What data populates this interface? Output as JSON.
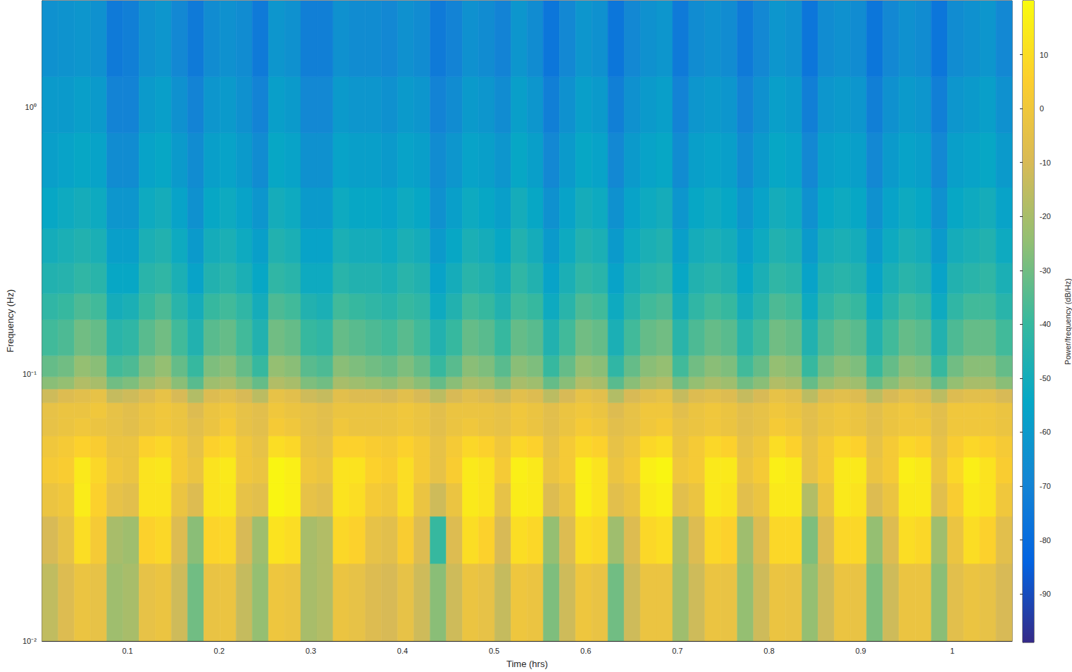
{
  "chart_data": {
    "type": "heatmap",
    "xlabel": "Time (hrs)",
    "ylabel": "Frequency (Hz)",
    "xlim": [
      0.0068,
      1.0652
    ],
    "xticks": [
      0.1,
      0.2,
      0.3,
      0.4,
      0.5,
      0.6,
      0.7,
      0.8,
      0.9,
      1
    ],
    "ylim": [
      0.01,
      2.5
    ],
    "yticks": [
      {
        "value": 0.01,
        "label": "10⁻²"
      },
      {
        "value": 0.1,
        "label": "10⁻¹"
      },
      {
        "value": 1,
        "label": "10⁰"
      }
    ],
    "log": "y",
    "grid": false,
    "time_edges": [
      0.0068,
      0.0244,
      0.0421,
      0.0597,
      0.0774,
      0.095,
      0.1126,
      0.1303,
      0.1479,
      0.1656,
      0.1832,
      0.2008,
      0.2185,
      0.2361,
      0.2538,
      0.2714,
      0.289,
      0.3067,
      0.3243,
      0.342,
      0.3596,
      0.3772,
      0.3949,
      0.4125,
      0.4302,
      0.4478,
      0.4654,
      0.4831,
      0.5007,
      0.5184,
      0.536,
      0.5536,
      0.5713,
      0.5889,
      0.6066,
      0.6242,
      0.6418,
      0.6595,
      0.6771,
      0.6948,
      0.7124,
      0.73,
      0.7477,
      0.7653,
      0.783,
      0.8006,
      0.8182,
      0.8359,
      0.8535,
      0.8712,
      0.8888,
      0.9064,
      0.9241,
      0.9417,
      0.9594,
      0.977,
      0.9946,
      1.0123,
      1.0299,
      1.0476,
      1.0652
    ],
    "freq_edges": [
      0.01,
      0.0195,
      0.0293,
      0.039,
      0.0488,
      0.0586,
      0.0684,
      0.0781,
      0.0879,
      0.0977,
      0.1172,
      0.16,
      0.2,
      0.26,
      0.35,
      0.5,
      0.8,
      1.3,
      2.5
    ],
    "power": [
      [
        -15,
        -10,
        -2,
        2,
        0,
        -4,
        -4,
        -12,
        -26,
        -32,
        -38,
        -42,
        -46,
        -50,
        -54,
        -58,
        -60,
        -64
      ],
      [
        -8,
        -4,
        0,
        4,
        2,
        -2,
        -2,
        -8,
        -24,
        -30,
        -36,
        -40,
        -45,
        -48,
        -52,
        -56,
        -60,
        -63
      ],
      [
        -2,
        10,
        15,
        14,
        6,
        0,
        -2,
        -6,
        -18,
        -24,
        -30,
        -36,
        -42,
        -46,
        -50,
        -54,
        -58,
        -62
      ],
      [
        -4,
        2,
        6,
        8,
        4,
        -2,
        0,
        -4,
        -20,
        -26,
        -32,
        -38,
        -44,
        -48,
        -52,
        -56,
        -60,
        -64
      ],
      [
        -22,
        -20,
        -4,
        0,
        -2,
        -4,
        -4,
        -14,
        -30,
        -38,
        -44,
        -50,
        -54,
        -58,
        -62,
        -66,
        -70,
        -74
      ],
      [
        -20,
        -22,
        -6,
        -2,
        -2,
        -6,
        -6,
        -12,
        -28,
        -36,
        -42,
        -48,
        -54,
        -58,
        -62,
        -66,
        -70,
        -72
      ],
      [
        -4,
        6,
        12,
        12,
        6,
        -2,
        -2,
        -8,
        -22,
        -28,
        -34,
        -40,
        -44,
        -48,
        -52,
        -56,
        -60,
        -64
      ],
      [
        -2,
        8,
        12,
        13,
        8,
        0,
        0,
        -4,
        -18,
        -24,
        -30,
        -36,
        -42,
        -46,
        -50,
        -54,
        -58,
        -62
      ],
      [
        -12,
        -8,
        -2,
        2,
        2,
        -2,
        -2,
        -10,
        -26,
        -32,
        -38,
        -44,
        -48,
        -52,
        -56,
        -60,
        -64,
        -68
      ],
      [
        -30,
        -26,
        -8,
        -2,
        -4,
        -6,
        -8,
        -18,
        -34,
        -40,
        -46,
        -50,
        -56,
        -60,
        -64,
        -66,
        -70,
        -74
      ],
      [
        -3,
        7,
        12,
        12,
        6,
        -2,
        -2,
        -8,
        -22,
        -28,
        -34,
        -40,
        -46,
        -50,
        -54,
        -58,
        -62,
        -66
      ],
      [
        -2,
        8,
        13,
        14,
        8,
        2,
        0,
        -6,
        -20,
        -26,
        -32,
        -38,
        -44,
        -48,
        -52,
        -56,
        -60,
        -64
      ],
      [
        -14,
        -10,
        -4,
        0,
        0,
        -4,
        -4,
        -10,
        -26,
        -32,
        -38,
        -42,
        -48,
        -52,
        -56,
        -60,
        -64,
        -66
      ],
      [
        -24,
        -22,
        -6,
        -2,
        -4,
        -6,
        -6,
        -16,
        -32,
        -40,
        -46,
        -50,
        -54,
        -58,
        -62,
        -66,
        -70,
        -74
      ],
      [
        -1,
        12,
        18,
        18,
        10,
        2,
        0,
        -4,
        -18,
        -24,
        -30,
        -36,
        -42,
        -46,
        -50,
        -54,
        -58,
        -62
      ],
      [
        -2,
        10,
        16,
        16,
        8,
        0,
        -2,
        -6,
        -20,
        -26,
        -32,
        -38,
        -44,
        -48,
        -52,
        -56,
        -60,
        -64
      ],
      [
        -20,
        -20,
        -4,
        0,
        -2,
        -4,
        -4,
        -12,
        -28,
        -34,
        -40,
        -46,
        -52,
        -56,
        -60,
        -64,
        -68,
        -72
      ],
      [
        -18,
        -18,
        -6,
        -2,
        -4,
        -6,
        -6,
        -14,
        -30,
        -36,
        -42,
        -48,
        -52,
        -56,
        -60,
        -64,
        -68,
        -72
      ],
      [
        -2,
        8,
        12,
        12,
        6,
        0,
        -2,
        -6,
        -20,
        -26,
        -32,
        -38,
        -44,
        -48,
        -52,
        -56,
        -60,
        -64
      ],
      [
        -4,
        6,
        10,
        12,
        6,
        -2,
        -2,
        -8,
        -22,
        -28,
        -34,
        -40,
        -46,
        -50,
        -54,
        -58,
        -62,
        -66
      ],
      [
        -8,
        -4,
        2,
        6,
        4,
        -2,
        -2,
        -8,
        -24,
        -30,
        -36,
        -42,
        -46,
        -50,
        -54,
        -58,
        -62,
        -66
      ],
      [
        -10,
        -6,
        0,
        4,
        2,
        -2,
        -2,
        -10,
        -26,
        -32,
        -38,
        -44,
        -48,
        -52,
        -56,
        -60,
        -64,
        -68
      ],
      [
        -4,
        4,
        10,
        10,
        6,
        0,
        0,
        -6,
        -22,
        -28,
        -34,
        -40,
        -44,
        -48,
        -52,
        -56,
        -60,
        -64
      ],
      [
        -12,
        -8,
        -2,
        2,
        2,
        -2,
        -2,
        -10,
        -26,
        -32,
        -38,
        -42,
        -46,
        -50,
        -54,
        -58,
        -62,
        -66
      ],
      [
        -26,
        -40,
        -12,
        -4,
        -4,
        -6,
        -6,
        -16,
        -32,
        -40,
        -46,
        -52,
        -56,
        -60,
        -64,
        -66,
        -70,
        -74
      ],
      [
        -12,
        -8,
        -2,
        4,
        2,
        -2,
        -2,
        -10,
        -26,
        -34,
        -40,
        -46,
        -50,
        -54,
        -58,
        -62,
        -66,
        -70
      ],
      [
        -2,
        10,
        14,
        14,
        8,
        0,
        -2,
        -6,
        -20,
        -26,
        -32,
        -38,
        -44,
        -48,
        -52,
        -56,
        -60,
        -64
      ],
      [
        -4,
        6,
        12,
        12,
        6,
        -2,
        -2,
        -8,
        -22,
        -28,
        -34,
        -40,
        -46,
        -50,
        -54,
        -58,
        -62,
        -66
      ],
      [
        -14,
        -10,
        -4,
        2,
        0,
        -4,
        -4,
        -12,
        -28,
        -34,
        -40,
        -46,
        -50,
        -54,
        -58,
        -62,
        -66,
        -70
      ],
      [
        -1,
        10,
        15,
        16,
        8,
        0,
        0,
        -6,
        -20,
        -26,
        -32,
        -38,
        -42,
        -46,
        -50,
        -54,
        -58,
        -62
      ],
      [
        -2,
        8,
        14,
        14,
        6,
        -2,
        -2,
        -8,
        -22,
        -28,
        -34,
        -40,
        -46,
        -50,
        -54,
        -58,
        -62,
        -66
      ],
      [
        -28,
        -24,
        -8,
        -2,
        -4,
        -6,
        -6,
        -16,
        -32,
        -40,
        -46,
        -52,
        -56,
        -60,
        -64,
        -68,
        -72,
        -76
      ],
      [
        -12,
        -8,
        -2,
        2,
        2,
        -2,
        -2,
        -10,
        -26,
        -32,
        -38,
        -44,
        -48,
        -52,
        -56,
        -60,
        -64,
        -68
      ],
      [
        -1,
        10,
        16,
        16,
        8,
        2,
        0,
        -4,
        -18,
        -24,
        -30,
        -36,
        -42,
        -46,
        -50,
        -54,
        -58,
        -62
      ],
      [
        -3,
        8,
        12,
        12,
        6,
        0,
        -2,
        -6,
        -20,
        -26,
        -32,
        -38,
        -44,
        -48,
        -52,
        -56,
        -60,
        -64
      ],
      [
        -30,
        -22,
        -6,
        -2,
        -4,
        -6,
        -8,
        -18,
        -34,
        -42,
        -48,
        -52,
        -56,
        -60,
        -64,
        -68,
        -72,
        -76
      ],
      [
        -12,
        -8,
        -2,
        2,
        0,
        -4,
        -4,
        -10,
        -26,
        -32,
        -38,
        -44,
        -48,
        -52,
        -56,
        -60,
        -64,
        -68
      ],
      [
        -2,
        8,
        14,
        16,
        8,
        0,
        0,
        -6,
        -20,
        -26,
        -32,
        -38,
        -44,
        -48,
        -52,
        -56,
        -60,
        -64
      ],
      [
        -2,
        10,
        16,
        18,
        10,
        2,
        0,
        -4,
        -18,
        -24,
        -30,
        -36,
        -42,
        -46,
        -50,
        -54,
        -58,
        -62
      ],
      [
        -22,
        -20,
        -6,
        0,
        -2,
        -4,
        -6,
        -14,
        -30,
        -38,
        -44,
        -50,
        -54,
        -58,
        -62,
        -66,
        -70,
        -74
      ],
      [
        -12,
        -8,
        -2,
        2,
        2,
        -2,
        -2,
        -8,
        -24,
        -30,
        -36,
        -42,
        -46,
        -50,
        -54,
        -58,
        -62,
        -66
      ],
      [
        -2,
        8,
        14,
        14,
        8,
        0,
        0,
        -6,
        -20,
        -26,
        -32,
        -38,
        -44,
        -48,
        -52,
        -56,
        -60,
        -64
      ],
      [
        -3,
        6,
        12,
        14,
        6,
        -2,
        -2,
        -8,
        -22,
        -28,
        -34,
        -40,
        -46,
        -50,
        -54,
        -58,
        -62,
        -66
      ],
      [
        -24,
        -22,
        -6,
        -2,
        -4,
        -6,
        -6,
        -14,
        -30,
        -38,
        -44,
        -50,
        -54,
        -58,
        -62,
        -66,
        -70,
        -74
      ],
      [
        -12,
        -8,
        -2,
        2,
        0,
        -4,
        -4,
        -10,
        -26,
        -32,
        -38,
        -44,
        -48,
        -52,
        -56,
        -60,
        -64,
        -68
      ],
      [
        -2,
        8,
        14,
        16,
        10,
        2,
        0,
        -4,
        -18,
        -24,
        -30,
        -36,
        -42,
        -46,
        -50,
        -54,
        -58,
        -62
      ],
      [
        -3,
        8,
        14,
        14,
        6,
        0,
        -2,
        -6,
        -20,
        -26,
        -32,
        -38,
        -44,
        -48,
        -52,
        -56,
        -60,
        -64
      ],
      [
        -24,
        -28,
        -18,
        -4,
        -4,
        -6,
        -6,
        -16,
        -32,
        -40,
        -46,
        -52,
        -56,
        -60,
        -64,
        -68,
        -72,
        -76
      ],
      [
        -12,
        -8,
        -2,
        2,
        2,
        -2,
        -2,
        -8,
        -24,
        -30,
        -36,
        -42,
        -46,
        -50,
        -54,
        -58,
        -62,
        -66
      ],
      [
        -2,
        8,
        14,
        14,
        8,
        0,
        0,
        -6,
        -20,
        -26,
        -32,
        -38,
        -44,
        -48,
        -52,
        -56,
        -60,
        -64
      ],
      [
        -3,
        8,
        12,
        14,
        6,
        -2,
        -2,
        -8,
        -22,
        -28,
        -34,
        -40,
        -46,
        -50,
        -54,
        -58,
        -62,
        -66
      ],
      [
        -28,
        -24,
        -8,
        -2,
        -4,
        -6,
        -6,
        -16,
        -32,
        -40,
        -46,
        -52,
        -56,
        -60,
        -64,
        -68,
        -72,
        -76
      ],
      [
        -12,
        -8,
        -2,
        2,
        2,
        -2,
        -2,
        -10,
        -26,
        -32,
        -38,
        -44,
        -48,
        -52,
        -56,
        -60,
        -64,
        -68
      ],
      [
        -2,
        10,
        14,
        16,
        8,
        0,
        0,
        -6,
        -20,
        -26,
        -32,
        -38,
        -44,
        -48,
        -52,
        -56,
        -60,
        -64
      ],
      [
        -2,
        8,
        14,
        14,
        6,
        0,
        -2,
        -8,
        -22,
        -28,
        -34,
        -40,
        -46,
        -50,
        -54,
        -58,
        -62,
        -66
      ],
      [
        -26,
        -22,
        -6,
        -2,
        -4,
        -6,
        -6,
        -16,
        -32,
        -40,
        -46,
        -52,
        -56,
        -60,
        -64,
        -68,
        -72,
        -76
      ],
      [
        -6,
        -2,
        4,
        8,
        4,
        0,
        0,
        -8,
        -24,
        -30,
        -36,
        -42,
        -46,
        -50,
        -54,
        -58,
        -62,
        -66
      ],
      [
        -2,
        10,
        14,
        16,
        8,
        0,
        0,
        -6,
        -20,
        -26,
        -32,
        -38,
        -44,
        -48,
        -52,
        -56,
        -60,
        -64
      ],
      [
        -4,
        6,
        12,
        12,
        6,
        0,
        0,
        -6,
        -20,
        -26,
        -32,
        -38,
        -42,
        -46,
        -50,
        -54,
        -58,
        -62
      ],
      [
        -10,
        -6,
        0,
        4,
        2,
        -2,
        -2,
        -10,
        -26,
        -32,
        -38,
        -44,
        -48,
        -52,
        -56,
        -60,
        -64,
        -68
      ]
    ],
    "colorbar": {
      "label": "Power/frequency (dB/Hz)",
      "range": [
        -99,
        20
      ],
      "ticks": [
        -90,
        -80,
        -70,
        -60,
        -50,
        -40,
        -30,
        -20,
        -10,
        0,
        10
      ]
    }
  }
}
